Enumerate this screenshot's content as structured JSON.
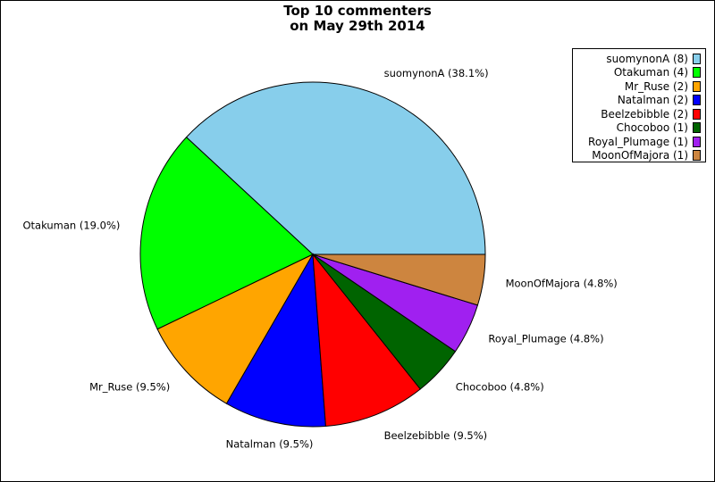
{
  "chart_data": {
    "type": "pie",
    "title": [
      "Top 10 commenters",
      "on May 29th 2014"
    ],
    "slices": [
      {
        "name": "suomynonA",
        "value": 8,
        "percent_label": "suomynonA (38.1%)",
        "legend_label": "suomynonA (8)",
        "color": "#87ceeb"
      },
      {
        "name": "Otakuman",
        "value": 4,
        "percent_label": "Otakuman (19.0%)",
        "legend_label": "Otakuman (4)",
        "color": "#00ff00"
      },
      {
        "name": "Mr_Ruse",
        "value": 2,
        "percent_label": "Mr_Ruse (9.5%)",
        "legend_label": "Mr_Ruse (2)",
        "color": "#ffa500"
      },
      {
        "name": "Natalman",
        "value": 2,
        "percent_label": "Natalman (9.5%)",
        "legend_label": "Natalman (2)",
        "color": "#0000ff"
      },
      {
        "name": "Beelzebibble",
        "value": 2,
        "percent_label": "Beelzebibble (9.5%)",
        "legend_label": "Beelzebibble (2)",
        "color": "#ff0000"
      },
      {
        "name": "Chocoboo",
        "value": 1,
        "percent_label": "Chocoboo (4.8%)",
        "legend_label": "Chocoboo (1)",
        "color": "#006400"
      },
      {
        "name": "Royal_Plumage",
        "value": 1,
        "percent_label": "Royal_Plumage (4.8%)",
        "legend_label": "Royal_Plumage (1)",
        "color": "#a020f0"
      },
      {
        "name": "MoonOfMajora",
        "value": 1,
        "percent_label": "MoonOfMajora (4.8%)",
        "legend_label": "MoonOfMajora (1)",
        "color": "#cd853f"
      }
    ],
    "start": "3 o'clock",
    "direction": "counter-clockwise",
    "legend_position": "top-right"
  }
}
